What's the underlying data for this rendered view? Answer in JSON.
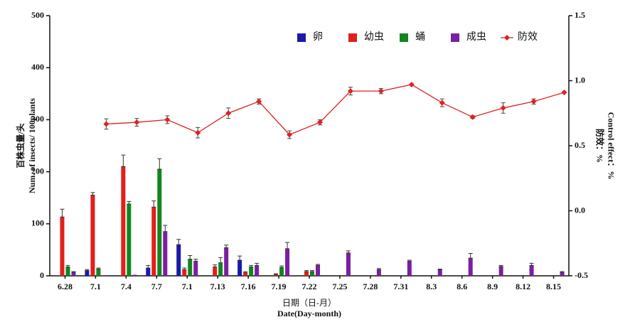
{
  "chart_data": {
    "type": "bar",
    "categories": [
      "6.28",
      "7.1",
      "7.4",
      "7.7",
      "7.1",
      "7.13",
      "7.16",
      "7.19",
      "7.22",
      "7.25",
      "7.28",
      "7.31",
      "8.3",
      "8.6",
      "8.9",
      "8.12",
      "8.15"
    ],
    "series": [
      {
        "name": "卵",
        "color": "#1a1aa8",
        "values": [
          0,
          10,
          0,
          15,
          60,
          0,
          30,
          0,
          0,
          0,
          0,
          0,
          0,
          0,
          0,
          0,
          0
        ],
        "errors": [
          0,
          2,
          0,
          5,
          10,
          0,
          8,
          0,
          0,
          0,
          0,
          0,
          0,
          0,
          0,
          0,
          0
        ]
      },
      {
        "name": "幼虫",
        "color": "#e0201c",
        "values": [
          113,
          155,
          210,
          132,
          12,
          17,
          6,
          3,
          8,
          0,
          0,
          0,
          0,
          0,
          0,
          0,
          0
        ],
        "errors": [
          15,
          5,
          22,
          12,
          3,
          4,
          2,
          1,
          2,
          0,
          0,
          0,
          0,
          0,
          0,
          0,
          0
        ]
      },
      {
        "name": "蛹",
        "color": "#12851f",
        "values": [
          17,
          13,
          138,
          205,
          32,
          25,
          17,
          16,
          8,
          0,
          0,
          0,
          0,
          0,
          0,
          0,
          0
        ],
        "errors": [
          3,
          2,
          5,
          20,
          7,
          10,
          3,
          3,
          2,
          0,
          0,
          0,
          0,
          0,
          0,
          0,
          0
        ]
      },
      {
        "name": "成虫",
        "color": "#7a1fa0",
        "values": [
          7,
          1,
          2,
          85,
          28,
          54,
          20,
          52,
          20,
          44,
          12,
          28,
          12,
          34,
          18,
          20,
          7
        ],
        "errors": [
          1,
          0,
          0,
          12,
          4,
          5,
          4,
          12,
          2,
          4,
          2,
          2,
          1,
          9,
          2,
          4,
          1
        ]
      },
      {
        "name": "防效",
        "type": "line",
        "axis": "y2",
        "color": "#e02020",
        "values": [
          null,
          0.667,
          0.68,
          0.7,
          0.6,
          0.75,
          0.84,
          0.585,
          0.68,
          0.92,
          0.92,
          0.97,
          0.83,
          0.72,
          0.79,
          0.84,
          0.91
        ],
        "errors": [
          null,
          0.04,
          0.03,
          0.03,
          0.04,
          0.04,
          0.02,
          0.03,
          0.02,
          0.03,
          0.02,
          0,
          0.03,
          0.01,
          0.04,
          0.02,
          0
        ]
      }
    ],
    "ylabel": [
      "百株虫量/头",
      "Num. of insects/ 100plants"
    ],
    "y2label": [
      "防效：%",
      "Control effect：%"
    ],
    "xlabel": [
      "日期（日-月）",
      "Date(Day-month)"
    ],
    "ylim": [
      0,
      500
    ],
    "yticks": [
      0,
      100,
      200,
      300,
      400,
      500
    ],
    "y2lim": [
      -0.5,
      1.5
    ],
    "y2ticks": [
      -0.5,
      {
        "value": 0,
        "label": "0.0"
      },
      0.5,
      {
        "value": 1,
        "label": "1.0"
      },
      1.5
    ],
    "legend": "top-right"
  }
}
